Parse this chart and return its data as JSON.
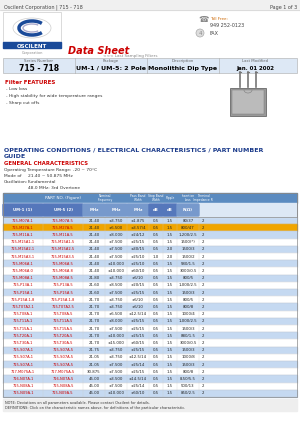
{
  "title_left": "Oscilent Corporation | 715 - 718",
  "title_right": "Page 1 of 3",
  "series_number": "715 - 718",
  "package": "UM-1 / UM-5: 2 Pole",
  "description": "Monolithic Dip Type",
  "last_modified": "Jan. 01 2002",
  "features_title": "Filter FEATURES",
  "features": [
    "- Low loss",
    "- High stability for wide temperature ranges",
    "- Sharp cut offs"
  ],
  "op_title": "OPERATING CONDITIONS / ELECTRICAL CHARACTERISTICS / PART NUMBER",
  "op_title2": "GUIDE",
  "gen_char": "GENERAL CHARACTERISTICS",
  "op_temp": "Operating Temperature Range: -20 ~ 70°C",
  "mode_label": "Mode of",
  "mode_val": "21.40 ~ 50.875 MHz",
  "oscillation_label": "Oscillation:",
  "oscillation_val": "Fundamental",
  "freq_note": "48.0 MHz: 3rd Overtone",
  "phone_label": "Toll Free:",
  "phone": "949 252-0123",
  "fax": "FAX",
  "filter_note": "<<< Last Sampling Filters",
  "col_um1": "UM-1 (1)",
  "col_um5": "UM-5 (2)",
  "col3": "Nominal\nFrequency\nMHz",
  "col4": "Pass Band\nWidth\nMHz",
  "col5": "Stop Band\nWidth\nMHz",
  "col6": "Ripple\ndB",
  "col7": "Insertion\nLoss\ndB",
  "col8": "Terminal\nImpedance R\nΩ",
  "col9": "Pole",
  "note1": "NOTE: Deviations on all parameters available. Please contact Oscilent for details.",
  "note2": "DEFINITIONS: Click on the characteristic names above, for definitions of the particular characteristic.",
  "rows": [
    [
      "715-M07A-1",
      "715-M07A-5",
      "21.40",
      "±3.750",
      "±1.875",
      "0.5",
      "1.5",
      "80/37",
      "2"
    ],
    [
      "715-M27A-1",
      "715-M27A-5",
      "21.40",
      "±6.500",
      "±3.57/4",
      "0.5",
      "1.5",
      "800/47",
      "2"
    ],
    [
      "715-M11A-1",
      "715-M11A-5",
      "21.40",
      "±8.000",
      "±24/12",
      "0.5",
      "1.5",
      "1,200/2.5",
      "2"
    ],
    [
      "715-M15A1-1",
      "715-M15A1-5",
      "21.40",
      "±7.500",
      "±25/15",
      "0.5",
      "1.5",
      "1500(*)",
      "2"
    ],
    [
      "715-M15A2-1",
      "715-M15A2-5",
      "21.40",
      "±7.500",
      "±30/15",
      "0.5",
      "2.0",
      "1500/3",
      "2"
    ],
    [
      "715-M15A3-1",
      "715-M15A3-5",
      "21.40",
      "±7.500",
      "±25/10",
      "1.0",
      "2.0",
      "1500/2",
      "2"
    ],
    [
      "715-M06A-1",
      "715-M06A-5",
      "21.40",
      "±10.000",
      "±25/10",
      "0.5",
      "1.5",
      "580/1.5",
      "2"
    ],
    [
      "715-M06A-0",
      "715-M06A-8",
      "21.40",
      "±10.000",
      "±60/10",
      "0.5",
      "1.5",
      "3000/0.5",
      "2"
    ],
    [
      "715-M08A-1",
      "715-M08A-5",
      "21.80",
      "±3.750",
      "±6/10",
      "0.5",
      "1.5",
      "800/5",
      "2"
    ],
    [
      "715-P13A-1",
      "715-P13A-5",
      "21.60",
      "±8.500",
      "±20/15",
      "0.5",
      "1.5",
      "1,000/2.5",
      "2"
    ],
    [
      "715-P15A-1",
      "715-P15A-5",
      "21.60",
      "±7.500",
      "±25/15",
      "0.5",
      "1.5",
      "1500/3",
      "2"
    ],
    [
      "715-P15A-1-8",
      "715-P15A-1-8",
      "21.70",
      "±3.750",
      "±6/10",
      "0.5",
      "1.5",
      "800/5",
      "2"
    ],
    [
      "715-T07A2-1",
      "715-T07A2-5",
      "21.70",
      "±3.750",
      "±6/10",
      "0.5",
      "1.5",
      "800/8",
      "2"
    ],
    [
      "715-T08A-1",
      "715-T08A-5",
      "21.70",
      "±6.500",
      "±12.5/14",
      "0.5",
      "1.5",
      "1000/4",
      "2"
    ],
    [
      "715-T11A-1",
      "715-T11A-5",
      "21.70",
      "±8.000",
      "±25/15",
      "0.5",
      "1.5",
      "1,000/2.5",
      "2"
    ],
    [
      "715-T15A-1",
      "715-T15A-5",
      "21.70",
      "±7.500",
      "±25/15",
      "0.5",
      "1.5",
      "1500/3",
      "2"
    ],
    [
      "715-T20A-1",
      "715-T20A-5",
      "21.70",
      "±10.000",
      "±25/15",
      "0.5",
      "1.5",
      "880/1.5",
      "2"
    ],
    [
      "715-T30A-1",
      "715-T30A-5",
      "21.70",
      "±15.000",
      "±60/15",
      "0.5",
      "1.5",
      "3000/0.5",
      "2"
    ],
    [
      "715-S07A-1",
      "715-S07A-5",
      "21.75",
      "±3.750",
      "±25/15",
      "0.5",
      "1.5",
      "1500/3",
      "2"
    ],
    [
      "715-S07A-1",
      "715-S07A-5",
      "21.05",
      "±3.750",
      "±12.5/14",
      "0.5",
      "1.5",
      "1000/8",
      "2"
    ],
    [
      "715-S07A-1",
      "715-S07A-5",
      "21.05",
      "±7.500",
      "±25/14",
      "0.5",
      "1.5",
      "1500/3",
      "2"
    ],
    [
      "717-M07SA-1",
      "717-M07SA-5",
      "30.875",
      "±7.500",
      "±25/15",
      "0.5",
      "1.5",
      "800/8",
      "2"
    ],
    [
      "716-N07A-1",
      "716-N07A-5",
      "45.00",
      "±3.500",
      "±14.5/14",
      "0.5",
      "1.5",
      "8,50/5.5",
      "2"
    ],
    [
      "715-N08A-1",
      "715-N08A-5",
      "45.00",
      "±7.500",
      "±25/14",
      "0.5",
      "1.5",
      "500/13",
      "2"
    ],
    [
      "715-N09A-1",
      "715-N09A-5",
      "45.00",
      "±10.000",
      "±60/10",
      "0.5",
      "1.5",
      "850/2.5",
      "2"
    ]
  ],
  "bg_color": "#ffffff",
  "header_bg": "#5b8bc0",
  "subheader_bg": "#7aaad0",
  "alt_row_color": "#c5d9f1",
  "orange_row": "#f0a500",
  "text_red": "#cc0000",
  "text_blue_dark": "#1a3a8a",
  "text_red_feat": "#cc0000",
  "table_border": "#888888",
  "info_bar_bg": "#dde8f5",
  "top_bar_bg": "#f0f0f0"
}
